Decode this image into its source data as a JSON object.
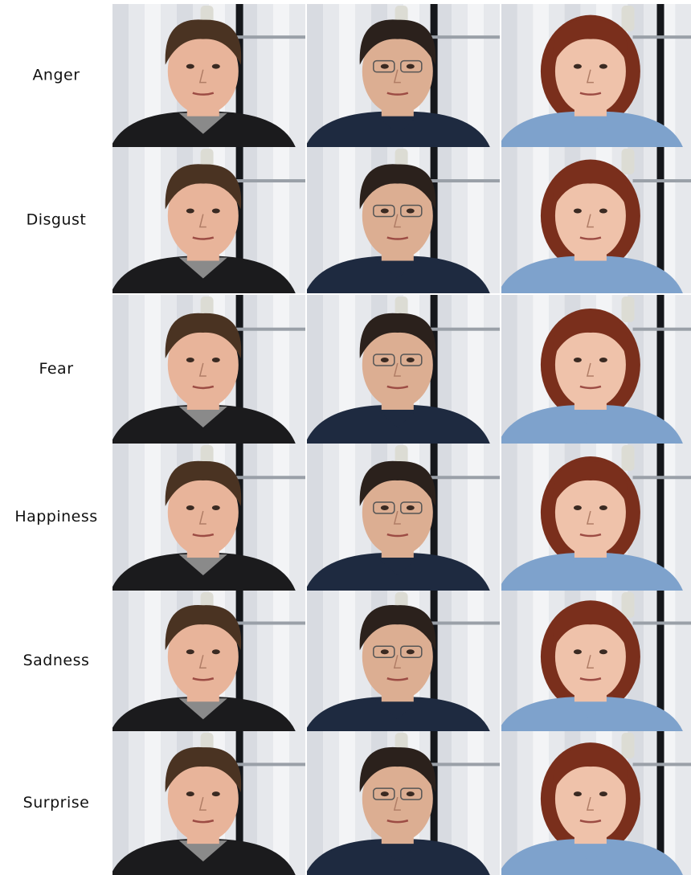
{
  "rows": [
    {
      "label": "Anger"
    },
    {
      "label": "Disgust"
    },
    {
      "label": "Fear"
    },
    {
      "label": "Happiness"
    },
    {
      "label": "Sadness"
    },
    {
      "label": "Surprise"
    }
  ]
}
